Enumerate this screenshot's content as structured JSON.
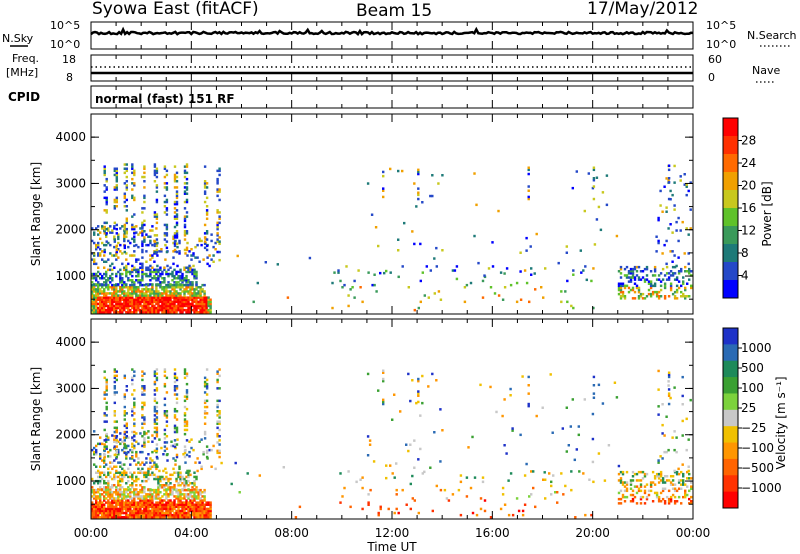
{
  "header": {
    "station": "Syowa East (fitACF)",
    "beam": "Beam 15",
    "date": "17/May/2012"
  },
  "top_panels": {
    "nsky_label": "N.Sky",
    "nsearch_label": "N.Search",
    "nsky_ticks": [
      "10^5",
      "10^0"
    ],
    "nsearch_ticks": [
      "10^5",
      "10^0"
    ],
    "freq_label_1": "Freq.",
    "freq_label_2": "[MHz]",
    "freq_ticks": [
      "18",
      "8"
    ],
    "nave_label": "Nave",
    "nave_ticks": [
      "60",
      "0"
    ],
    "cpid_label": "CPID",
    "cpid_text": "normal (fast) 151 RF"
  },
  "chart_data": [
    {
      "type": "heatmap",
      "name": "Power",
      "ylabel": "Slant Range [km]",
      "yticks": [
        "1000",
        "2000",
        "3000",
        "4000"
      ],
      "ylim": [
        180,
        4500
      ],
      "xlim": [
        0,
        24
      ],
      "colorbar_label": "Power [dB]",
      "colorbar_ticks": [
        "4",
        "8",
        "12",
        "16",
        "20",
        "24",
        "28"
      ],
      "colorbar_colors": [
        "#0000ff",
        "#2448c8",
        "#1e7a78",
        "#3a9a5a",
        "#5fc22a",
        "#c8c81e",
        "#f0a000",
        "#ff6a00",
        "#ff3000",
        "#ff0000"
      ]
    },
    {
      "type": "heatmap",
      "name": "Velocity",
      "ylabel": "Slant Range [km]",
      "yticks": [
        "1000",
        "2000",
        "3000",
        "4000"
      ],
      "ylim": [
        180,
        4500
      ],
      "xlim": [
        0,
        24
      ],
      "xlabel": "Time UT",
      "xticks": [
        "00:00",
        "04:00",
        "08:00",
        "12:00",
        "16:00",
        "20:00",
        "00:00"
      ],
      "colorbar_label": "Velocity [m s⁻¹]",
      "colorbar_ticks": [
        "1000",
        "500",
        "100",
        "25",
        "−25",
        "−100",
        "−500",
        "−1000"
      ],
      "colorbar_colors": [
        "#1e32c8",
        "#2a6ab4",
        "#1e8a5a",
        "#3aa032",
        "#7cd23c",
        "#c8c8c8",
        "#f0c000",
        "#ff9600",
        "#ff6400",
        "#ff3200",
        "#ff0000"
      ]
    }
  ]
}
